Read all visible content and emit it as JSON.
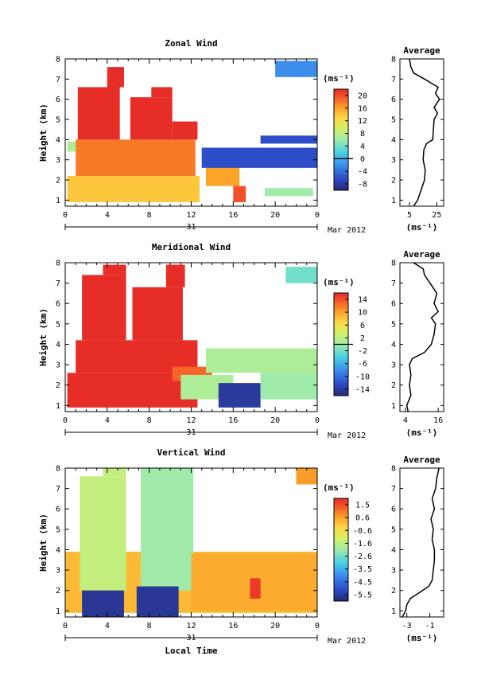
{
  "chart_data": [
    {
      "type": "heatmap",
      "title": "Zonal Wind",
      "ylabel": "Height (km)",
      "unit": "(ms⁻¹)",
      "x_ticks": [
        "0",
        "4",
        "8",
        "12",
        "16",
        "20",
        "0"
      ],
      "date_label": "31",
      "month_label": "Mar 2012",
      "ylim": [
        0.7,
        8.0
      ],
      "y_ticks": [
        "1",
        "2",
        "3",
        "4",
        "5",
        "6",
        "7",
        "8"
      ],
      "colorbar_ticks": [
        "20",
        "16",
        "12",
        "8",
        "4",
        "0",
        "-4",
        "-8"
      ],
      "colorbar_range": [
        -10,
        22
      ],
      "regions": [
        {
          "t0": 0.2,
          "t1": 12.8,
          "h0": 0.9,
          "h1": 2.2,
          "v": 14
        },
        {
          "t0": 0.2,
          "t1": 1.2,
          "h0": 3.4,
          "h1": 3.9,
          "v": 7
        },
        {
          "t0": 1.0,
          "t1": 12.4,
          "h0": 2.2,
          "h1": 4.0,
          "v": 18
        },
        {
          "t0": 1.2,
          "t1": 5.2,
          "h0": 4.0,
          "h1": 6.6,
          "v": 22
        },
        {
          "t0": 4.0,
          "t1": 5.6,
          "h0": 6.6,
          "h1": 7.6,
          "v": 22
        },
        {
          "t0": 6.2,
          "t1": 10.2,
          "h0": 4.0,
          "h1": 6.1,
          "v": 22
        },
        {
          "t0": 8.2,
          "t1": 10.2,
          "h0": 6.1,
          "h1": 6.6,
          "v": 22
        },
        {
          "t0": 10.2,
          "t1": 12.6,
          "h0": 4.0,
          "h1": 4.9,
          "v": 22
        },
        {
          "t0": 13.4,
          "t1": 16.6,
          "h0": 1.7,
          "h1": 3.0,
          "v": 16
        },
        {
          "t0": 16.0,
          "t1": 17.2,
          "h0": 0.9,
          "h1": 1.7,
          "v": 20
        },
        {
          "t0": 13.0,
          "t1": 24.0,
          "h0": 2.6,
          "h1": 3.6,
          "v": -6
        },
        {
          "t0": 18.6,
          "t1": 24.0,
          "h0": 3.8,
          "h1": 4.2,
          "v": -6
        },
        {
          "t0": 19.0,
          "t1": 23.6,
          "h0": 1.2,
          "h1": 1.6,
          "v": 6
        },
        {
          "t0": 20.0,
          "t1": 24.0,
          "h0": 7.1,
          "h1": 7.9,
          "v": -2
        }
      ],
      "profile": {
        "title": "Average",
        "xlabel": "(ms⁻¹)",
        "x_ticks": [
          "5",
          "25"
        ],
        "xlim": [
          -2,
          30
        ],
        "heights": [
          0.7,
          1.0,
          1.5,
          2.0,
          2.5,
          3.0,
          3.5,
          3.8,
          4.0,
          4.5,
          5.0,
          5.3,
          5.6,
          6.0,
          6.3,
          6.6,
          7.0,
          7.3,
          7.6,
          8.0
        ],
        "values": [
          8.0,
          11.0,
          13.5,
          16.0,
          16.5,
          15.0,
          15.5,
          17.5,
          22.0,
          22.5,
          23.0,
          25.5,
          23.0,
          27.0,
          24.0,
          26.0,
          16.0,
          8.0,
          6.0,
          5.0
        ]
      }
    },
    {
      "type": "heatmap",
      "title": "Meridional Wind",
      "ylabel": "Height (km)",
      "unit": "(ms⁻¹)",
      "x_ticks": [
        "0",
        "4",
        "8",
        "12",
        "16",
        "20",
        "0"
      ],
      "date_label": "31",
      "month_label": "Mar 2012",
      "ylim": [
        0.7,
        8.0
      ],
      "y_ticks": [
        "1",
        "2",
        "3",
        "4",
        "5",
        "6",
        "7",
        "8"
      ],
      "colorbar_ticks": [
        "14",
        "10",
        "6",
        "2",
        "-2",
        "-6",
        "-10",
        "-14"
      ],
      "colorbar_range": [
        -16,
        16
      ],
      "regions": [
        {
          "t0": 0.2,
          "t1": 12.6,
          "h0": 0.9,
          "h1": 2.6,
          "v": 16
        },
        {
          "t0": 1.0,
          "t1": 12.6,
          "h0": 2.6,
          "h1": 4.2,
          "v": 16
        },
        {
          "t0": 1.6,
          "t1": 5.8,
          "h0": 4.2,
          "h1": 7.4,
          "v": 16
        },
        {
          "t0": 3.6,
          "t1": 5.8,
          "h0": 7.4,
          "h1": 7.9,
          "v": 16
        },
        {
          "t0": 6.4,
          "t1": 11.2,
          "h0": 4.2,
          "h1": 6.8,
          "v": 16
        },
        {
          "t0": 9.6,
          "t1": 11.4,
          "h0": 6.8,
          "h1": 7.9,
          "v": 16
        },
        {
          "t0": 10.2,
          "t1": 14.0,
          "h0": 2.2,
          "h1": 2.9,
          "v": 13
        },
        {
          "t0": 11.0,
          "t1": 16.0,
          "h0": 1.3,
          "h1": 2.5,
          "v": 1
        },
        {
          "t0": 13.4,
          "t1": 24.0,
          "h0": 2.6,
          "h1": 3.8,
          "v": 1
        },
        {
          "t0": 14.6,
          "t1": 18.6,
          "h0": 0.9,
          "h1": 2.1,
          "v": -14
        },
        {
          "t0": 18.6,
          "t1": 24.0,
          "h0": 1.3,
          "h1": 2.6,
          "v": 0
        },
        {
          "t0": 21.0,
          "t1": 24.0,
          "h0": 7.0,
          "h1": 7.8,
          "v": -2
        }
      ],
      "profile": {
        "title": "Average",
        "xlabel": "(ms⁻¹)",
        "x_ticks": [
          "4",
          "16"
        ],
        "xlim": [
          2,
          18
        ],
        "heights": [
          0.7,
          1.0,
          1.5,
          2.0,
          2.5,
          3.0,
          3.3,
          3.6,
          4.0,
          4.5,
          5.0,
          5.3,
          5.6,
          6.0,
          6.5,
          7.0,
          7.4,
          7.7,
          8.0
        ],
        "values": [
          5.0,
          4.5,
          6.0,
          5.5,
          6.0,
          5.5,
          6.5,
          11.0,
          13.5,
          14.5,
          15.0,
          13.5,
          16.0,
          14.5,
          15.5,
          13.0,
          11.0,
          10.5,
          7.0
        ]
      }
    },
    {
      "type": "heatmap",
      "title": "Vertical Wind",
      "ylabel": "Height (km)",
      "unit": "(ms⁻¹)",
      "x_ticks": [
        "0",
        "4",
        "8",
        "12",
        "16",
        "20",
        "0"
      ],
      "date_label": "31",
      "month_label": "Mar 2012",
      "ylim": [
        0.7,
        8.0
      ],
      "y_ticks": [
        "1",
        "2",
        "3",
        "4",
        "5",
        "6",
        "7",
        "8"
      ],
      "colorbar_ticks": [
        "1.5",
        "0.6",
        "-0.6",
        "-1.6",
        "-2.6",
        "-3.5",
        "-4.5",
        "-5.5"
      ],
      "colorbar_range": [
        -6.0,
        2.0
      ],
      "xlabel": "Local Time",
      "regions": [
        {
          "t0": 0.0,
          "t1": 24.0,
          "h0": 0.9,
          "h1": 3.9,
          "v": 0.2
        },
        {
          "t0": 1.4,
          "t1": 5.8,
          "h0": 2.0,
          "h1": 7.6,
          "v": -1.4
        },
        {
          "t0": 3.6,
          "t1": 5.8,
          "h0": 7.6,
          "h1": 8.0,
          "v": -1.4
        },
        {
          "t0": 7.2,
          "t1": 12.2,
          "h0": 2.0,
          "h1": 8.0,
          "v": -2.0
        },
        {
          "t0": 1.6,
          "t1": 5.6,
          "h0": 0.7,
          "h1": 2.0,
          "v": -5.6
        },
        {
          "t0": 6.8,
          "t1": 10.8,
          "h0": 0.7,
          "h1": 2.2,
          "v": -5.6
        },
        {
          "t0": 12.0,
          "t1": 24.0,
          "h0": 1.0,
          "h1": 3.8,
          "v": 0.4
        },
        {
          "t0": 17.6,
          "t1": 18.6,
          "h0": 1.6,
          "h1": 2.6,
          "v": 1.8
        },
        {
          "t0": 22.0,
          "t1": 24.0,
          "h0": 7.2,
          "h1": 8.0,
          "v": 0.6
        }
      ],
      "profile": {
        "title": "Average",
        "xlabel": "(ms⁻¹)",
        "x_ticks": [
          "-3",
          "-1"
        ],
        "xlim": [
          -3.6,
          0.2
        ],
        "heights": [
          0.7,
          1.0,
          1.3,
          1.6,
          1.9,
          2.2,
          2.5,
          3.0,
          3.5,
          4.0,
          4.5,
          5.0,
          5.5,
          6.0,
          6.5,
          7.0,
          7.5,
          8.0
        ],
        "values": [
          -3.4,
          -3.1,
          -3.0,
          -2.7,
          -1.9,
          -1.1,
          -0.8,
          -0.7,
          -0.6,
          -0.6,
          -0.8,
          -0.7,
          -0.9,
          -0.6,
          -0.8,
          -0.5,
          -0.4,
          -0.2
        ]
      }
    }
  ]
}
